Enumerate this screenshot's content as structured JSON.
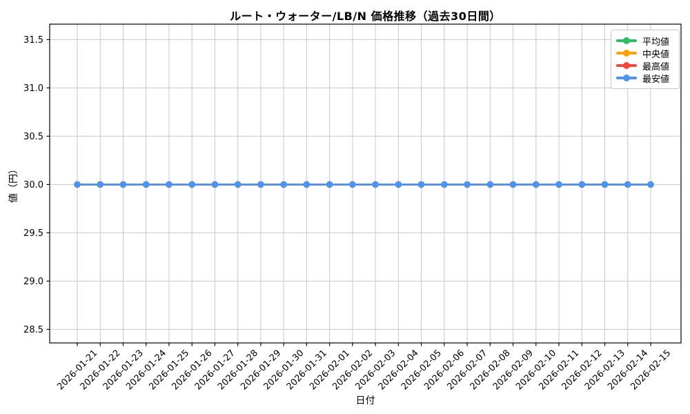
{
  "chart_data": {
    "type": "line",
    "title": "ルート・ウォーター/LB/N 価格推移（過去30日間）",
    "xlabel": "日付",
    "ylabel": "値（円）",
    "x": [
      "2026-01-21",
      "2026-01-22",
      "2026-01-23",
      "2026-01-24",
      "2026-01-25",
      "2026-01-26",
      "2026-01-27",
      "2026-01-28",
      "2026-01-29",
      "2026-01-30",
      "2026-01-31",
      "2026-02-01",
      "2026-02-02",
      "2026-02-03",
      "2026-02-04",
      "2026-02-05",
      "2026-02-06",
      "2026-02-07",
      "2026-02-08",
      "2026-02-09",
      "2026-02-10",
      "2026-02-11",
      "2026-02-12",
      "2026-02-13",
      "2026-02-14",
      "2026-02-15"
    ],
    "series": [
      {
        "name": "平均値",
        "color": "#2dbe64",
        "values": [
          30,
          30,
          30,
          30,
          30,
          30,
          30,
          30,
          30,
          30,
          30,
          30,
          30,
          30,
          30,
          30,
          30,
          30,
          30,
          30,
          30,
          30,
          30,
          30,
          30,
          30
        ]
      },
      {
        "name": "中央値",
        "color": "#ffa202",
        "values": [
          30,
          30,
          30,
          30,
          30,
          30,
          30,
          30,
          30,
          30,
          30,
          30,
          30,
          30,
          30,
          30,
          30,
          30,
          30,
          30,
          30,
          30,
          30,
          30,
          30,
          30
        ]
      },
      {
        "name": "最高値",
        "color": "#f5463c",
        "values": [
          30,
          30,
          30,
          30,
          30,
          30,
          30,
          30,
          30,
          30,
          30,
          30,
          30,
          30,
          30,
          30,
          30,
          30,
          30,
          30,
          30,
          30,
          30,
          30,
          30,
          30
        ]
      },
      {
        "name": "最安値",
        "color": "#4d94f2",
        "values": [
          30,
          30,
          30,
          30,
          30,
          30,
          30,
          30,
          30,
          30,
          30,
          30,
          30,
          30,
          30,
          30,
          30,
          30,
          30,
          30,
          30,
          30,
          30,
          30,
          30,
          30
        ]
      }
    ],
    "yticks": [
      28.5,
      29.0,
      29.5,
      30.0,
      30.5,
      31.0,
      31.5
    ],
    "ylim": [
      28.36,
      31.66
    ],
    "grid": true,
    "grid_color": "#c8c8c8",
    "legend_position": "upper right",
    "note": "all four series overlap at value 30.00; topmost drawn series 最安値 (blue) is visible"
  }
}
